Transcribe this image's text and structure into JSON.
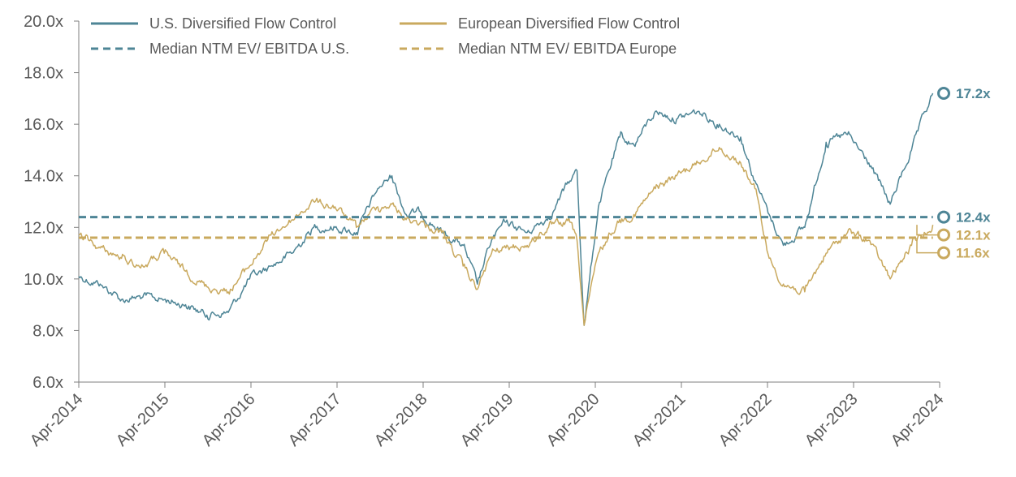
{
  "chart_data": {
    "type": "line",
    "title": "",
    "xlabel": "",
    "ylabel": "",
    "x_range": [
      "2014-04-01",
      "2024-04-30"
    ],
    "ylim": [
      6.0,
      20.0
    ],
    "grid": false,
    "legend_position": "top",
    "colors": {
      "us": "#4e8596",
      "europe": "#c9a95e"
    },
    "y_ticks": [
      "6.0x",
      "8.0x",
      "10.0x",
      "12.0x",
      "14.0x",
      "16.0x",
      "18.0x",
      "20.0x"
    ],
    "x_ticks": [
      "Apr-2014",
      "Apr-2015",
      "Apr-2016",
      "Apr-2017",
      "Apr-2018",
      "Apr-2019",
      "Apr-2020",
      "Apr-2021",
      "Apr-2022",
      "Apr-2023",
      "Apr-2024"
    ],
    "series": [
      {
        "name": "U.S. Diversified Flow Control",
        "style": "solid",
        "color": "#4e8596",
        "x": [
          "2014-04",
          "2014-07",
          "2014-10",
          "2015-01",
          "2015-04",
          "2015-07",
          "2015-10",
          "2016-01",
          "2016-04",
          "2016-07",
          "2016-10",
          "2017-01",
          "2017-04",
          "2017-07",
          "2017-10",
          "2017-12",
          "2018-02",
          "2018-04",
          "2018-07",
          "2018-10",
          "2018-12",
          "2019-02",
          "2019-04",
          "2019-07",
          "2019-10",
          "2020-01",
          "2020-02",
          "2020-03",
          "2020-05",
          "2020-08",
          "2020-10",
          "2021-01",
          "2021-04",
          "2021-07",
          "2021-10",
          "2022-01",
          "2022-03",
          "2022-05",
          "2022-07",
          "2022-10",
          "2023-01",
          "2023-04",
          "2023-07",
          "2023-10",
          "2024-01",
          "2024-04"
        ],
        "values": [
          10.1,
          9.8,
          9.2,
          9.3,
          9.2,
          9.0,
          8.6,
          8.7,
          10.0,
          10.5,
          11.0,
          12.0,
          12.0,
          11.8,
          13.5,
          14.0,
          12.5,
          12.6,
          11.8,
          11.3,
          9.8,
          11.5,
          12.2,
          11.8,
          12.4,
          13.8,
          14.2,
          8.2,
          12.8,
          15.5,
          15.2,
          16.5,
          16.2,
          16.5,
          16.0,
          15.5,
          13.8,
          12.5,
          11.3,
          12.0,
          15.3,
          15.6,
          14.5,
          12.9,
          15.0,
          17.2
        ]
      },
      {
        "name": "European Diversified Flow Control",
        "style": "solid",
        "color": "#c9a95e",
        "x": [
          "2014-04",
          "2014-07",
          "2014-10",
          "2015-01",
          "2015-04",
          "2015-07",
          "2015-10",
          "2016-01",
          "2016-04",
          "2016-07",
          "2016-10",
          "2017-01",
          "2017-04",
          "2017-07",
          "2017-10",
          "2017-12",
          "2018-02",
          "2018-04",
          "2018-07",
          "2018-10",
          "2018-12",
          "2019-02",
          "2019-04",
          "2019-07",
          "2019-10",
          "2020-01",
          "2020-02",
          "2020-03",
          "2020-05",
          "2020-08",
          "2020-10",
          "2021-01",
          "2021-04",
          "2021-07",
          "2021-10",
          "2022-01",
          "2022-03",
          "2022-05",
          "2022-07",
          "2022-10",
          "2023-01",
          "2023-04",
          "2023-07",
          "2023-10",
          "2024-01",
          "2024-04"
        ],
        "values": [
          11.7,
          11.2,
          10.8,
          10.5,
          11.0,
          10.3,
          9.7,
          9.5,
          10.5,
          11.7,
          12.3,
          13.0,
          12.8,
          12.0,
          12.8,
          12.9,
          12.3,
          12.2,
          11.8,
          10.5,
          9.6,
          11.0,
          11.2,
          11.3,
          12.0,
          12.2,
          11.5,
          8.2,
          11.0,
          12.3,
          12.5,
          13.5,
          14.0,
          14.5,
          15.1,
          14.5,
          13.5,
          10.8,
          9.8,
          9.5,
          11.0,
          11.8,
          11.5,
          10.0,
          11.3,
          12.1
        ]
      },
      {
        "name": "Median NTM EV/ EBITDA U.S.",
        "style": "dashed",
        "color": "#4e8596",
        "x": [
          "2014-04",
          "2024-04"
        ],
        "values": [
          12.4,
          12.4
        ]
      },
      {
        "name": "Median NTM EV/ EBITDA Europe",
        "style": "dashed",
        "color": "#c9a95e",
        "x": [
          "2014-04",
          "2024-04"
        ],
        "values": [
          11.6,
          11.6
        ]
      }
    ],
    "annotations": [
      {
        "label": "17.2x",
        "value": 17.2,
        "color": "#4e8596"
      },
      {
        "label": "12.4x",
        "value": 12.4,
        "color": "#4e8596"
      },
      {
        "label": "12.1x",
        "value": 12.1,
        "color": "#c9a95e"
      },
      {
        "label": "11.6x",
        "value": 11.6,
        "color": "#c9a95e"
      }
    ]
  }
}
